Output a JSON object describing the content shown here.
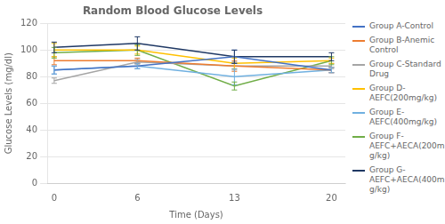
{
  "chart_data": {
    "type": "line",
    "title": "Random Blood Glucose Levels",
    "x_label": "Time (Days)",
    "y_label": "Glucose Levels (mg/dl)",
    "x": [
      0,
      6,
      13,
      20
    ],
    "series": [
      {
        "name": "Group A-Control",
        "color": "#4472C4",
        "values": [
          85,
          88,
          95,
          85
        ],
        "errors": [
          3,
          2,
          5,
          2
        ]
      },
      {
        "name": "Group B-Anemic\nControl",
        "color": "#ED7D31",
        "values": [
          92,
          92,
          88,
          85
        ],
        "errors": [
          3,
          2,
          4,
          2
        ]
      },
      {
        "name": "Group C-Standard\nDrug",
        "color": "#A5A5A5",
        "values": [
          77,
          91,
          88,
          88
        ],
        "errors": [
          2,
          2,
          3,
          2
        ]
      },
      {
        "name": "Group D-\nAEFC(200mg/kg)",
        "color": "#FFC000",
        "values": [
          100,
          100,
          90,
          92
        ],
        "errors": [
          5,
          3,
          4,
          2
        ]
      },
      {
        "name": "Group E-\nAEFC(400mg/kg)",
        "color": "#70B0E0",
        "values": [
          85,
          88,
          80,
          85
        ],
        "errors": [
          3,
          2,
          6,
          2
        ]
      },
      {
        "name": "Group F-\nAEFC+AECA(200m\ng/kg)",
        "color": "#70AD47",
        "values": [
          98,
          100,
          73,
          92
        ],
        "errors": [
          4,
          4,
          3,
          3
        ]
      },
      {
        "name": "Group G-\nAEFC+AECA(400m\ng/kg)",
        "color": "#1F3864",
        "values": [
          102,
          105,
          95,
          95
        ],
        "errors": [
          4,
          5,
          5,
          3
        ]
      }
    ],
    "xlim": [
      -0.5,
      21
    ],
    "xticks": [
      0,
      6,
      13,
      20
    ],
    "ylim": [
      0,
      120
    ],
    "yticks": [
      0,
      20,
      40,
      60,
      80,
      100,
      120
    ],
    "grid": "y",
    "legend": "right"
  }
}
